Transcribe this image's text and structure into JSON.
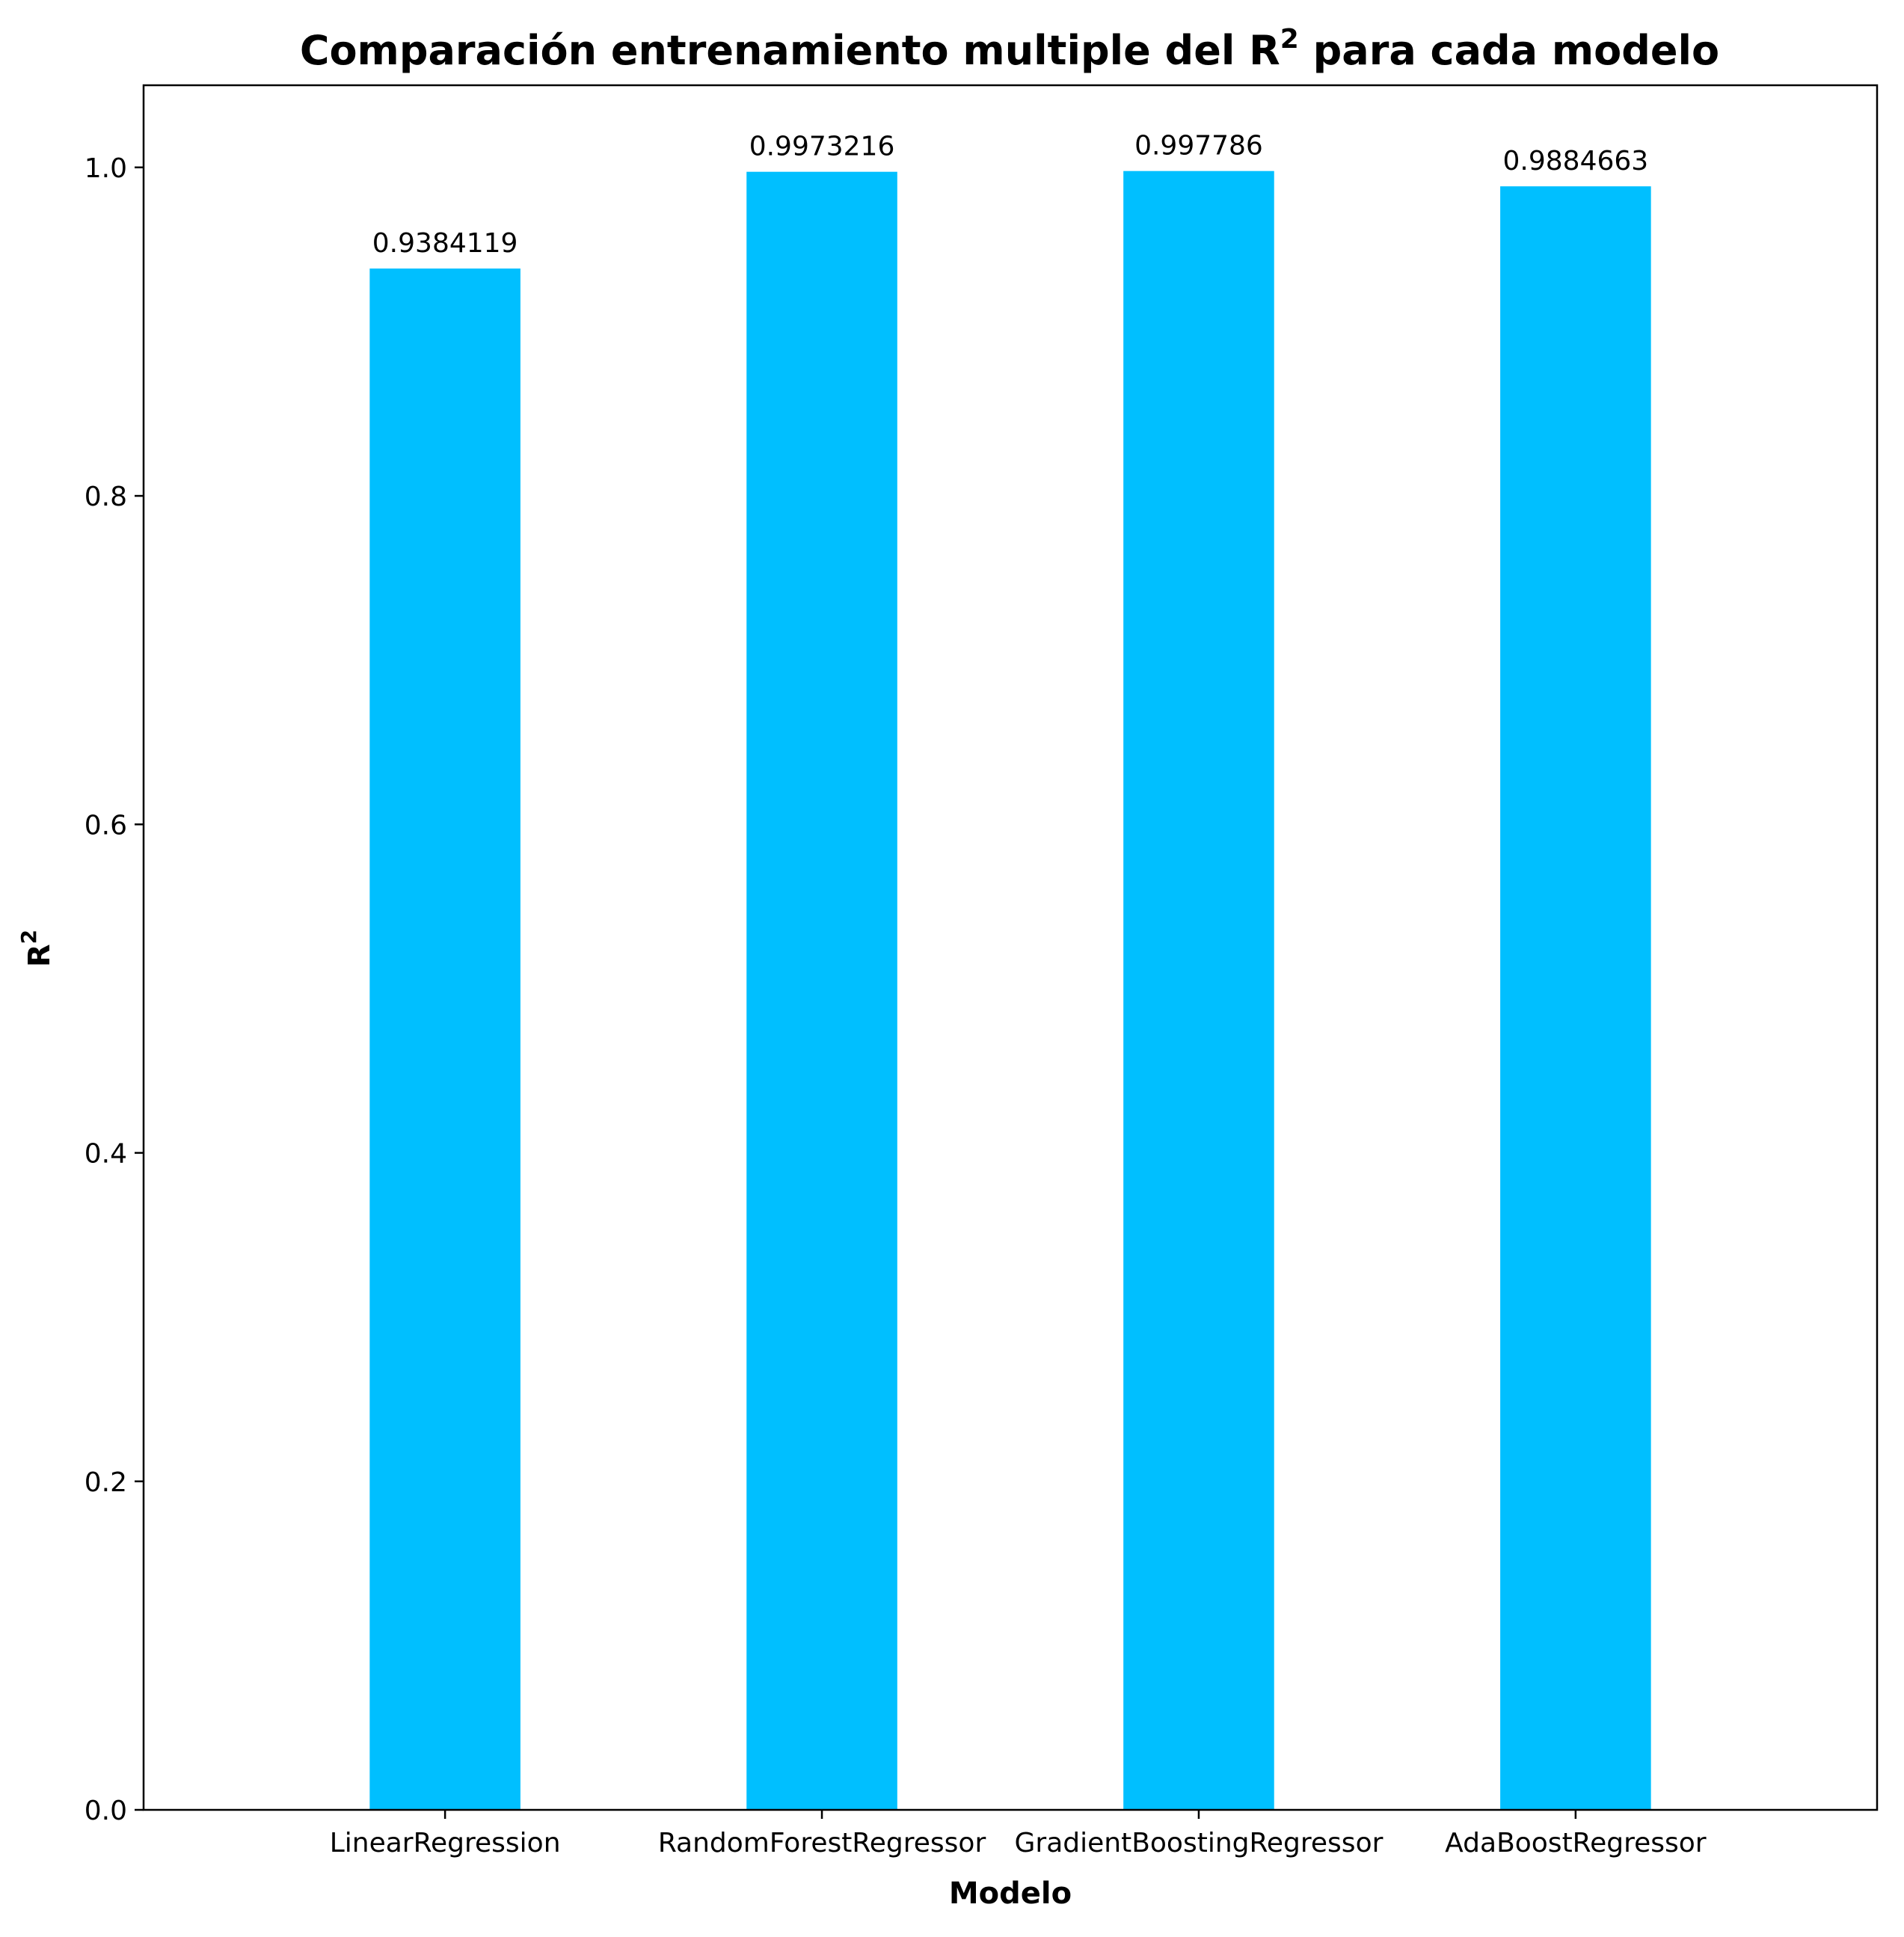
{
  "chart_data": {
    "type": "bar",
    "title": "Comparación entrenamiento multiple del R",
    "title_superscript": "2",
    "title_suffix": " para cada modelo",
    "xlabel": "Modelo",
    "ylabel": "R",
    "ylabel_superscript": "2",
    "categories": [
      "LinearRegression",
      "RandomForestRegressor",
      "GradientBoostingRegressor",
      "AdaBoostRegressor"
    ],
    "values": [
      0.9384119,
      0.9973216,
      0.997786,
      0.9884663
    ],
    "value_labels": [
      "0.9384119",
      "0.9973216",
      "0.997786",
      "0.9884663"
    ],
    "ylim": [
      0,
      1.05
    ],
    "yticks": [
      0.0,
      0.2,
      0.4,
      0.6,
      0.8,
      1.0
    ],
    "ytick_labels": [
      "0.0",
      "0.2",
      "0.4",
      "0.6",
      "0.8",
      "1.0"
    ],
    "bar_color": "#00bfff",
    "grid": false,
    "legend": "none"
  }
}
